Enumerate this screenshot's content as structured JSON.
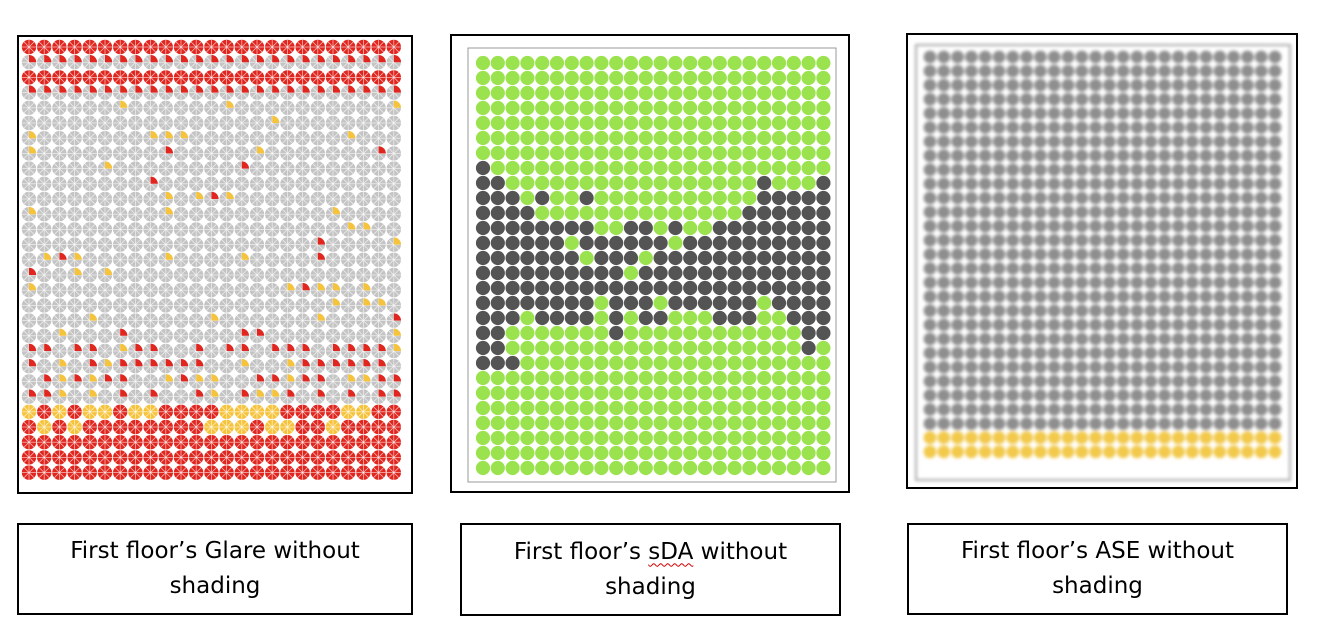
{
  "panels": [
    {
      "id": "glare",
      "caption": "First floor’s Glare without shading",
      "caption_prefix": "First floor’s Glare without",
      "caption_suffix": "shading"
    },
    {
      "id": "sda",
      "caption": "First floor’s sDA without shading",
      "caption_prefix": "First floor’s ",
      "caption_term": "sDA",
      "caption_mid": " without",
      "caption_suffix": "shading"
    },
    {
      "id": "ase",
      "caption": "First floor’s ASE without shading",
      "caption_prefix": "First floor’s ASE without",
      "caption_suffix": "shading"
    }
  ],
  "colors": {
    "sensor_gray": "#c4c4c4",
    "glare_red": "#e0261f",
    "glare_yellow": "#f6c33c",
    "sda_green": "#9be34e",
    "sda_dark": "#545454",
    "ase_gray": "#8e8e8e",
    "ase_yellow": "#f2c94c"
  }
}
